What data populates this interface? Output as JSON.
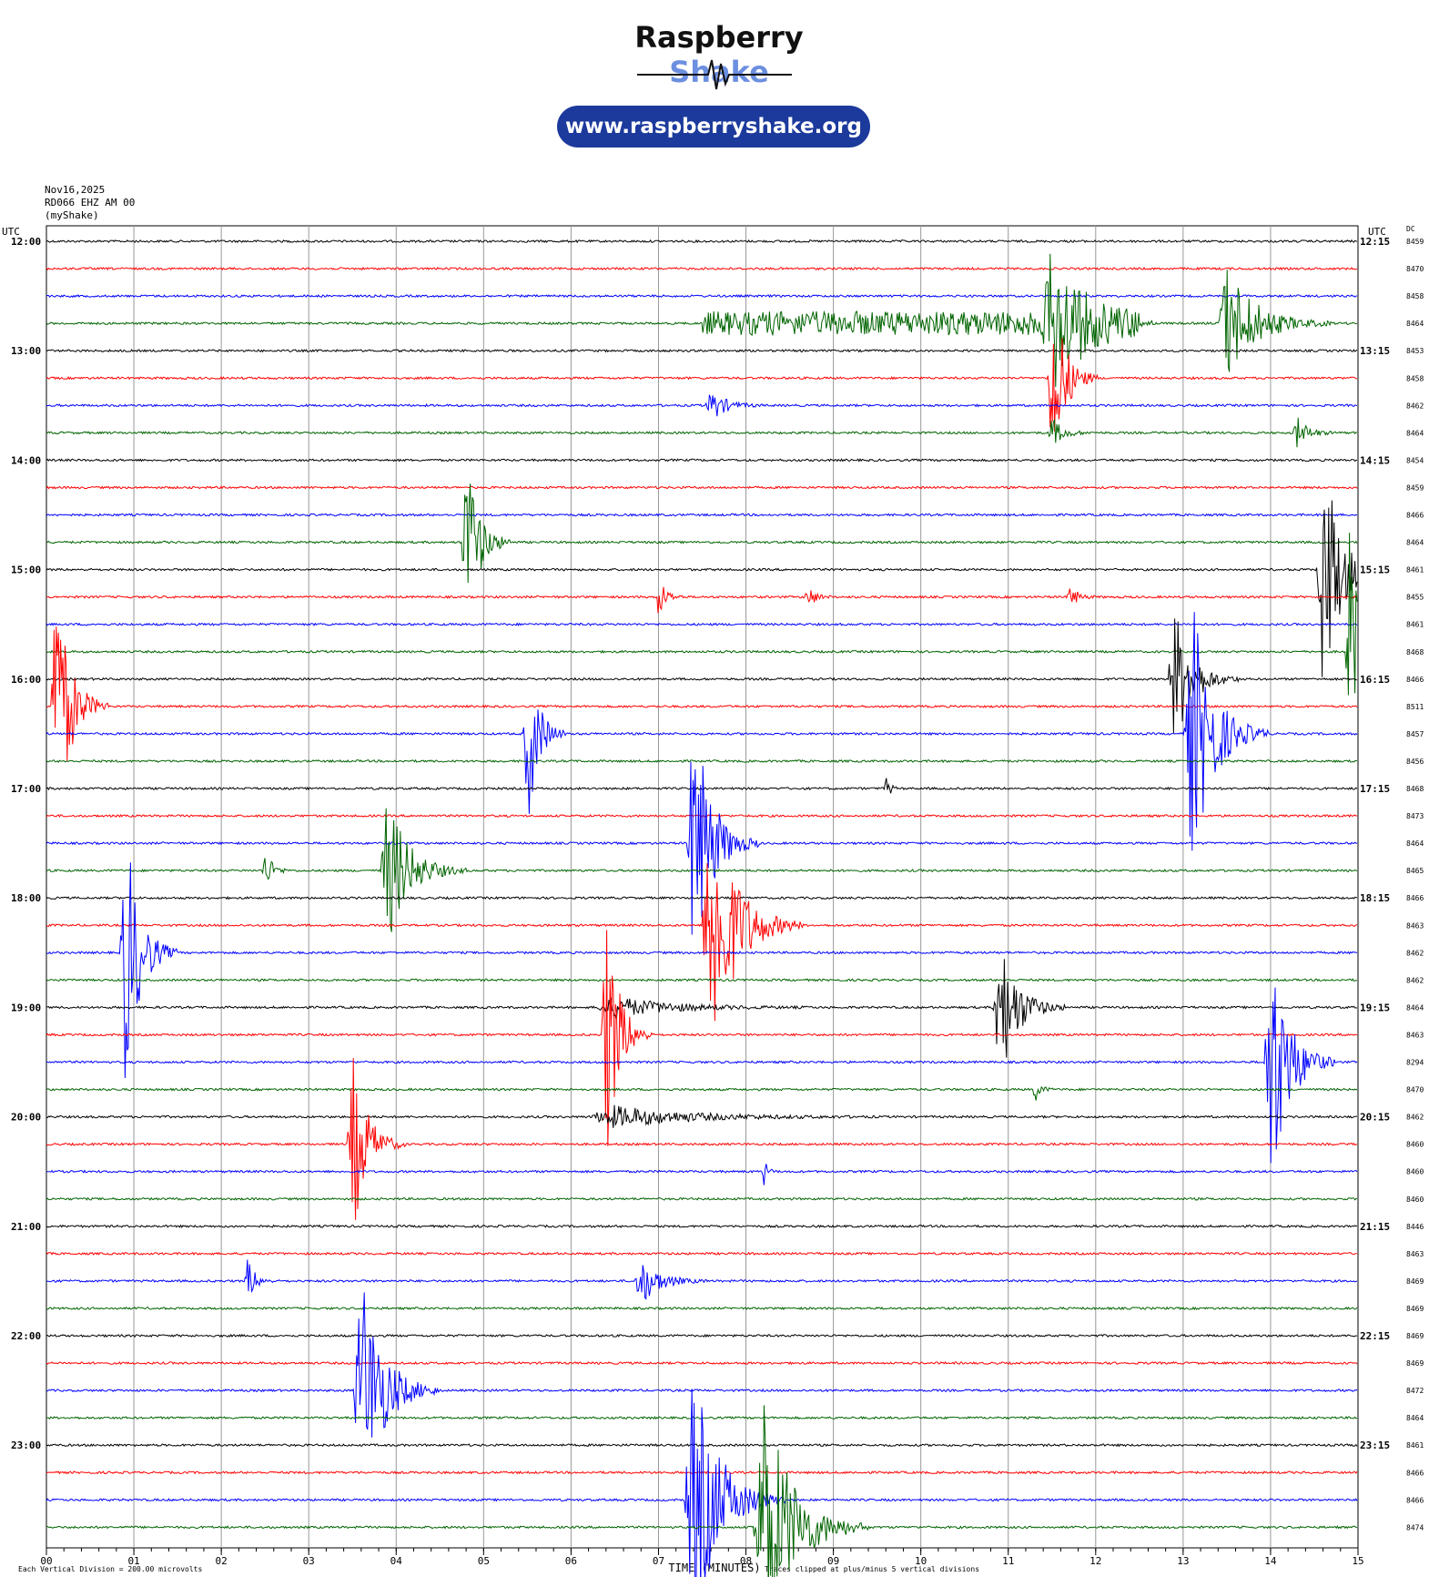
{
  "logo": {
    "word1": "Raspberry",
    "word2": "Shake",
    "url": "www.raspberryshake.org"
  },
  "header": {
    "date": "Nov16,2025",
    "station": "RD066 EHZ AM 00",
    "network": "(myShake)"
  },
  "chart_data": {
    "type": "helicorder",
    "utc_left_label": "UTC",
    "utc_right_label": "UTC",
    "dc_label": "DC",
    "xlabel": "TIME (MINUTES)",
    "x_ticks": [
      "00",
      "01",
      "02",
      "03",
      "04",
      "05",
      "06",
      "07",
      "08",
      "09",
      "10",
      "11",
      "12",
      "13",
      "14",
      "15"
    ],
    "xlim": [
      0,
      15
    ],
    "line_minutes": 15,
    "left_hour_labels": [
      {
        "row": 0,
        "text": "12:00"
      },
      {
        "row": 4,
        "text": "13:00"
      },
      {
        "row": 8,
        "text": "14:00"
      },
      {
        "row": 12,
        "text": "15:00"
      },
      {
        "row": 16,
        "text": "16:00"
      },
      {
        "row": 20,
        "text": "17:00"
      },
      {
        "row": 24,
        "text": "18:00"
      },
      {
        "row": 28,
        "text": "19:00"
      },
      {
        "row": 32,
        "text": "20:00"
      },
      {
        "row": 36,
        "text": "21:00"
      },
      {
        "row": 40,
        "text": "22:00"
      },
      {
        "row": 44,
        "text": "23:00"
      }
    ],
    "right_hour_labels": [
      {
        "row": 0,
        "text": "12:15"
      },
      {
        "row": 4,
        "text": "13:15"
      },
      {
        "row": 8,
        "text": "14:15"
      },
      {
        "row": 12,
        "text": "15:15"
      },
      {
        "row": 16,
        "text": "16:15"
      },
      {
        "row": 20,
        "text": "17:15"
      },
      {
        "row": 24,
        "text": "18:15"
      },
      {
        "row": 28,
        "text": "19:15"
      },
      {
        "row": 32,
        "text": "20:15"
      },
      {
        "row": 36,
        "text": "21:15"
      },
      {
        "row": 40,
        "text": "22:15"
      },
      {
        "row": 44,
        "text": "23:15"
      }
    ],
    "dc_values": [
      "8459",
      "8470",
      "8458",
      "8464",
      "8453",
      "8458",
      "8462",
      "8464",
      "8454",
      "8459",
      "8466",
      "8464",
      "8461",
      "8455",
      "8461",
      "8468",
      "8466",
      "8511",
      "8457",
      "8456",
      "8468",
      "8473",
      "8464",
      "8465",
      "8466",
      "8463",
      "8462",
      "8462",
      "8464",
      "8463",
      "8294",
      "8470",
      "8462",
      "8460",
      "8460",
      "8460",
      "8446",
      "8463",
      "8469",
      "8469",
      "8469",
      "8469",
      "8472",
      "8464",
      "8461",
      "8466",
      "8466",
      "8474"
    ],
    "trace_colors": [
      "#000000",
      "#ff0000",
      "#0000ff",
      "#006400"
    ],
    "footer_left": "Each Vertical Division =  200.00 microvolts",
    "footer_right": "Traces clipped at plus/minus 5 vertical divisions",
    "events": [
      {
        "row": 3,
        "minute": 10.0,
        "amp": 1.6,
        "width": 5.0,
        "noise": true
      },
      {
        "row": 3,
        "minute": 11.5,
        "amp": 2.6,
        "width": 0.8
      },
      {
        "row": 3,
        "minute": 13.5,
        "amp": 2.2,
        "width": 0.8
      },
      {
        "row": 5,
        "minute": 11.5,
        "amp": 3.8,
        "width": 0.35
      },
      {
        "row": 6,
        "minute": 7.6,
        "amp": 0.6,
        "width": 0.4
      },
      {
        "row": 7,
        "minute": 14.3,
        "amp": 0.6,
        "width": 0.3
      },
      {
        "row": 7,
        "minute": 11.5,
        "amp": 0.6,
        "width": 0.3
      },
      {
        "row": 11,
        "minute": 4.8,
        "amp": 3.5,
        "width": 0.35
      },
      {
        "row": 12,
        "minute": 14.6,
        "amp": 4.5,
        "width": 0.5
      },
      {
        "row": 13,
        "minute": 7.0,
        "amp": 0.8,
        "width": 0.2
      },
      {
        "row": 13,
        "minute": 8.7,
        "amp": 0.5,
        "width": 0.2
      },
      {
        "row": 13,
        "minute": 11.7,
        "amp": 0.5,
        "width": 0.2
      },
      {
        "row": 15,
        "minute": 14.9,
        "amp": 4.5,
        "width": 0.3
      },
      {
        "row": 16,
        "minute": 12.9,
        "amp": 2.6,
        "width": 0.5
      },
      {
        "row": 17,
        "minute": 0.1,
        "amp": 5.0,
        "width": 0.4
      },
      {
        "row": 18,
        "minute": 5.5,
        "amp": 3.5,
        "width": 0.3
      },
      {
        "row": 18,
        "minute": 13.1,
        "amp": 5.0,
        "width": 0.6
      },
      {
        "row": 20,
        "minute": 9.6,
        "amp": 0.6,
        "width": 0.1
      },
      {
        "row": 22,
        "minute": 7.4,
        "amp": 5.0,
        "width": 0.5
      },
      {
        "row": 23,
        "minute": 3.9,
        "amp": 2.8,
        "width": 0.6
      },
      {
        "row": 23,
        "minute": 2.5,
        "amp": 0.8,
        "width": 0.2
      },
      {
        "row": 25,
        "minute": 7.6,
        "amp": 5.0,
        "width": 0.7
      },
      {
        "row": 26,
        "minute": 0.9,
        "amp": 5.0,
        "width": 0.4
      },
      {
        "row": 28,
        "minute": 10.9,
        "amp": 2.8,
        "width": 0.5
      },
      {
        "row": 28,
        "minute": 6.5,
        "amp": 0.4,
        "width": 1.5
      },
      {
        "row": 29,
        "minute": 6.4,
        "amp": 5.0,
        "width": 0.35
      },
      {
        "row": 30,
        "minute": 14.0,
        "amp": 5.0,
        "width": 0.5
      },
      {
        "row": 31,
        "minute": 11.3,
        "amp": 0.5,
        "width": 0.15
      },
      {
        "row": 32,
        "minute": 6.5,
        "amp": 0.4,
        "width": 2.0
      },
      {
        "row": 33,
        "minute": 3.5,
        "amp": 3.5,
        "width": 0.4
      },
      {
        "row": 34,
        "minute": 8.2,
        "amp": 0.6,
        "width": 0.1
      },
      {
        "row": 38,
        "minute": 2.3,
        "amp": 0.9,
        "width": 0.2
      },
      {
        "row": 38,
        "minute": 6.8,
        "amp": 0.9,
        "width": 0.5
      },
      {
        "row": 42,
        "minute": 3.6,
        "amp": 4.5,
        "width": 0.6
      },
      {
        "row": 46,
        "minute": 7.4,
        "amp": 5.0,
        "width": 0.7
      },
      {
        "row": 47,
        "minute": 8.2,
        "amp": 5.0,
        "width": 0.8
      }
    ]
  }
}
